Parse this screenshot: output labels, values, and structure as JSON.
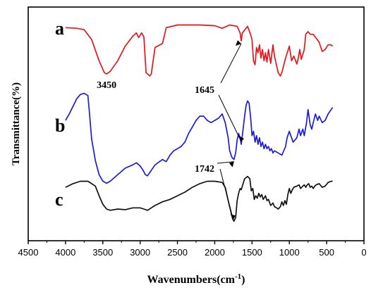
{
  "chart_data": {
    "type": "line",
    "title": "",
    "xlabel": "Wavenumbers(cm",
    "xlabel_sup": "-1",
    "xlabel_end": ")",
    "ylabel": "Transmittance(%)",
    "xlim": [
      4500,
      0
    ],
    "x_ticks": [
      "4500",
      "4000",
      "3500",
      "3000",
      "2500",
      "2000",
      "1500",
      "1000",
      "500",
      "0"
    ],
    "grid": false,
    "legend": "none",
    "series": [
      {
        "name": "a",
        "color": "#e8141a",
        "points": [
          [
            4000,
            0.88
          ],
          [
            3850,
            0.87
          ],
          [
            3750,
            0.85
          ],
          [
            3650,
            0.7
          ],
          [
            3550,
            0.38
          ],
          [
            3480,
            0.2
          ],
          [
            3450,
            0.18
          ],
          [
            3400,
            0.22
          ],
          [
            3300,
            0.38
          ],
          [
            3200,
            0.6
          ],
          [
            3100,
            0.75
          ],
          [
            3050,
            0.8
          ],
          [
            3020,
            0.73
          ],
          [
            2980,
            0.8
          ],
          [
            2950,
            0.74
          ],
          [
            2920,
            0.2
          ],
          [
            2870,
            0.15
          ],
          [
            2850,
            0.18
          ],
          [
            2800,
            0.58
          ],
          [
            2700,
            0.64
          ],
          [
            2650,
            0.88
          ],
          [
            2500,
            0.92
          ],
          [
            2200,
            0.92
          ],
          [
            2000,
            0.91
          ],
          [
            1900,
            0.87
          ],
          [
            1800,
            0.92
          ],
          [
            1700,
            0.9
          ],
          [
            1660,
            0.8
          ],
          [
            1645,
            0.68
          ],
          [
            1630,
            0.8
          ],
          [
            1560,
            0.9
          ],
          [
            1520,
            0.78
          ],
          [
            1500,
            0.7
          ],
          [
            1480,
            0.38
          ],
          [
            1460,
            0.32
          ],
          [
            1440,
            0.58
          ],
          [
            1420,
            0.5
          ],
          [
            1400,
            0.62
          ],
          [
            1380,
            0.42
          ],
          [
            1360,
            0.55
          ],
          [
            1340,
            0.38
          ],
          [
            1320,
            0.5
          ],
          [
            1300,
            0.36
          ],
          [
            1280,
            0.55
          ],
          [
            1250,
            0.34
          ],
          [
            1220,
            0.62
          ],
          [
            1200,
            0.45
          ],
          [
            1150,
            0.2
          ],
          [
            1120,
            0.15
          ],
          [
            1100,
            0.2
          ],
          [
            1050,
            0.42
          ],
          [
            1000,
            0.6
          ],
          [
            970,
            0.38
          ],
          [
            940,
            0.45
          ],
          [
            900,
            0.33
          ],
          [
            880,
            0.42
          ],
          [
            860,
            0.55
          ],
          [
            840,
            0.4
          ],
          [
            800,
            0.55
          ],
          [
            780,
            0.78
          ],
          [
            750,
            0.82
          ],
          [
            720,
            0.78
          ],
          [
            680,
            0.78
          ],
          [
            640,
            0.72
          ],
          [
            600,
            0.66
          ],
          [
            560,
            0.52
          ],
          [
            520,
            0.55
          ],
          [
            480,
            0.62
          ],
          [
            440,
            0.62
          ],
          [
            420,
            0.6
          ]
        ]
      },
      {
        "name": "b",
        "color": "#1c1cd8",
        "points": [
          [
            4000,
            0.72
          ],
          [
            3950,
            0.78
          ],
          [
            3900,
            0.85
          ],
          [
            3850,
            0.92
          ],
          [
            3800,
            0.96
          ],
          [
            3750,
            0.97
          ],
          [
            3700,
            0.95
          ],
          [
            3680,
            0.8
          ],
          [
            3650,
            0.55
          ],
          [
            3600,
            0.35
          ],
          [
            3550,
            0.22
          ],
          [
            3500,
            0.16
          ],
          [
            3450,
            0.14
          ],
          [
            3400,
            0.16
          ],
          [
            3300,
            0.22
          ],
          [
            3200,
            0.28
          ],
          [
            3100,
            0.31
          ],
          [
            3050,
            0.33
          ],
          [
            3000,
            0.3
          ],
          [
            2960,
            0.26
          ],
          [
            2930,
            0.22
          ],
          [
            2900,
            0.21
          ],
          [
            2870,
            0.24
          ],
          [
            2800,
            0.31
          ],
          [
            2700,
            0.36
          ],
          [
            2650,
            0.34
          ],
          [
            2600,
            0.4
          ],
          [
            2550,
            0.44
          ],
          [
            2500,
            0.46
          ],
          [
            2450,
            0.48
          ],
          [
            2400,
            0.52
          ],
          [
            2350,
            0.6
          ],
          [
            2300,
            0.66
          ],
          [
            2250,
            0.72
          ],
          [
            2200,
            0.76
          ],
          [
            2150,
            0.76
          ],
          [
            2100,
            0.72
          ],
          [
            2050,
            0.7
          ],
          [
            2000,
            0.72
          ],
          [
            1950,
            0.74
          ],
          [
            1900,
            0.78
          ],
          [
            1860,
            0.7
          ],
          [
            1820,
            0.56
          ],
          [
            1800,
            0.44
          ],
          [
            1770,
            0.38
          ],
          [
            1742,
            0.36
          ],
          [
            1720,
            0.42
          ],
          [
            1700,
            0.54
          ],
          [
            1680,
            0.6
          ],
          [
            1660,
            0.56
          ],
          [
            1645,
            0.5
          ],
          [
            1630,
            0.58
          ],
          [
            1600,
            0.76
          ],
          [
            1580,
            0.86
          ],
          [
            1560,
            0.9
          ],
          [
            1540,
            0.88
          ],
          [
            1520,
            0.76
          ],
          [
            1500,
            0.58
          ],
          [
            1480,
            0.62
          ],
          [
            1460,
            0.52
          ],
          [
            1440,
            0.58
          ],
          [
            1420,
            0.5
          ],
          [
            1400,
            0.56
          ],
          [
            1380,
            0.48
          ],
          [
            1360,
            0.52
          ],
          [
            1340,
            0.46
          ],
          [
            1320,
            0.5
          ],
          [
            1300,
            0.46
          ],
          [
            1280,
            0.48
          ],
          [
            1260,
            0.44
          ],
          [
            1240,
            0.46
          ],
          [
            1220,
            0.42
          ],
          [
            1200,
            0.44
          ],
          [
            1150,
            0.42
          ],
          [
            1100,
            0.4
          ],
          [
            1050,
            0.48
          ],
          [
            1030,
            0.56
          ],
          [
            1000,
            0.62
          ],
          [
            980,
            0.58
          ],
          [
            950,
            0.52
          ],
          [
            900,
            0.56
          ],
          [
            870,
            0.64
          ],
          [
            850,
            0.58
          ],
          [
            820,
            0.64
          ],
          [
            800,
            0.58
          ],
          [
            770,
            0.7
          ],
          [
            750,
            0.82
          ],
          [
            720,
            0.68
          ],
          [
            700,
            0.64
          ],
          [
            680,
            0.7
          ],
          [
            650,
            0.78
          ],
          [
            620,
            0.72
          ],
          [
            600,
            0.76
          ],
          [
            560,
            0.7
          ],
          [
            520,
            0.72
          ],
          [
            480,
            0.78
          ],
          [
            440,
            0.82
          ],
          [
            420,
            0.84
          ]
        ]
      },
      {
        "name": "c",
        "color": "#111111",
        "points": [
          [
            4000,
            0.72
          ],
          [
            3900,
            0.78
          ],
          [
            3800,
            0.82
          ],
          [
            3700,
            0.82
          ],
          [
            3650,
            0.78
          ],
          [
            3600,
            0.74
          ],
          [
            3550,
            0.58
          ],
          [
            3500,
            0.44
          ],
          [
            3450,
            0.36
          ],
          [
            3400,
            0.34
          ],
          [
            3300,
            0.36
          ],
          [
            3200,
            0.35
          ],
          [
            3100,
            0.38
          ],
          [
            3000,
            0.38
          ],
          [
            2950,
            0.36
          ],
          [
            2900,
            0.34
          ],
          [
            2850,
            0.38
          ],
          [
            2800,
            0.42
          ],
          [
            2700,
            0.48
          ],
          [
            2600,
            0.52
          ],
          [
            2500,
            0.58
          ],
          [
            2400,
            0.64
          ],
          [
            2300,
            0.72
          ],
          [
            2200,
            0.78
          ],
          [
            2100,
            0.82
          ],
          [
            2000,
            0.82
          ],
          [
            1900,
            0.8
          ],
          [
            1860,
            0.72
          ],
          [
            1820,
            0.5
          ],
          [
            1780,
            0.3
          ],
          [
            1760,
            0.2
          ],
          [
            1742,
            0.16
          ],
          [
            1720,
            0.22
          ],
          [
            1700,
            0.5
          ],
          [
            1680,
            0.62
          ],
          [
            1660,
            0.7
          ],
          [
            1645,
            0.68
          ],
          [
            1630,
            0.74
          ],
          [
            1600,
            0.86
          ],
          [
            1560,
            0.9
          ],
          [
            1530,
            0.86
          ],
          [
            1510,
            0.66
          ],
          [
            1490,
            0.7
          ],
          [
            1470,
            0.52
          ],
          [
            1450,
            0.58
          ],
          [
            1430,
            0.54
          ],
          [
            1410,
            0.62
          ],
          [
            1390,
            0.56
          ],
          [
            1370,
            0.6
          ],
          [
            1350,
            0.52
          ],
          [
            1320,
            0.58
          ],
          [
            1300,
            0.5
          ],
          [
            1280,
            0.52
          ],
          [
            1250,
            0.42
          ],
          [
            1220,
            0.46
          ],
          [
            1200,
            0.4
          ],
          [
            1170,
            0.38
          ],
          [
            1150,
            0.36
          ],
          [
            1120,
            0.4
          ],
          [
            1100,
            0.48
          ],
          [
            1080,
            0.42
          ],
          [
            1060,
            0.5
          ],
          [
            1040,
            0.44
          ],
          [
            1020,
            0.6
          ],
          [
            1000,
            0.7
          ],
          [
            980,
            0.62
          ],
          [
            960,
            0.68
          ],
          [
            940,
            0.72
          ],
          [
            900,
            0.74
          ],
          [
            870,
            0.76
          ],
          [
            850,
            0.7
          ],
          [
            820,
            0.74
          ],
          [
            800,
            0.76
          ],
          [
            780,
            0.72
          ],
          [
            760,
            0.76
          ],
          [
            740,
            0.78
          ],
          [
            720,
            0.72
          ],
          [
            700,
            0.74
          ],
          [
            680,
            0.7
          ],
          [
            660,
            0.74
          ],
          [
            640,
            0.76
          ],
          [
            600,
            0.78
          ],
          [
            560,
            0.72
          ],
          [
            520,
            0.74
          ],
          [
            480,
            0.8
          ],
          [
            440,
            0.82
          ],
          [
            420,
            0.82
          ]
        ]
      }
    ],
    "annotations": [
      {
        "text": "3450",
        "series": "a",
        "x": 3450
      },
      {
        "text": "1645",
        "series": "a",
        "x": 1645
      },
      {
        "text": "1742",
        "series": "b",
        "x": 1742
      }
    ]
  }
}
